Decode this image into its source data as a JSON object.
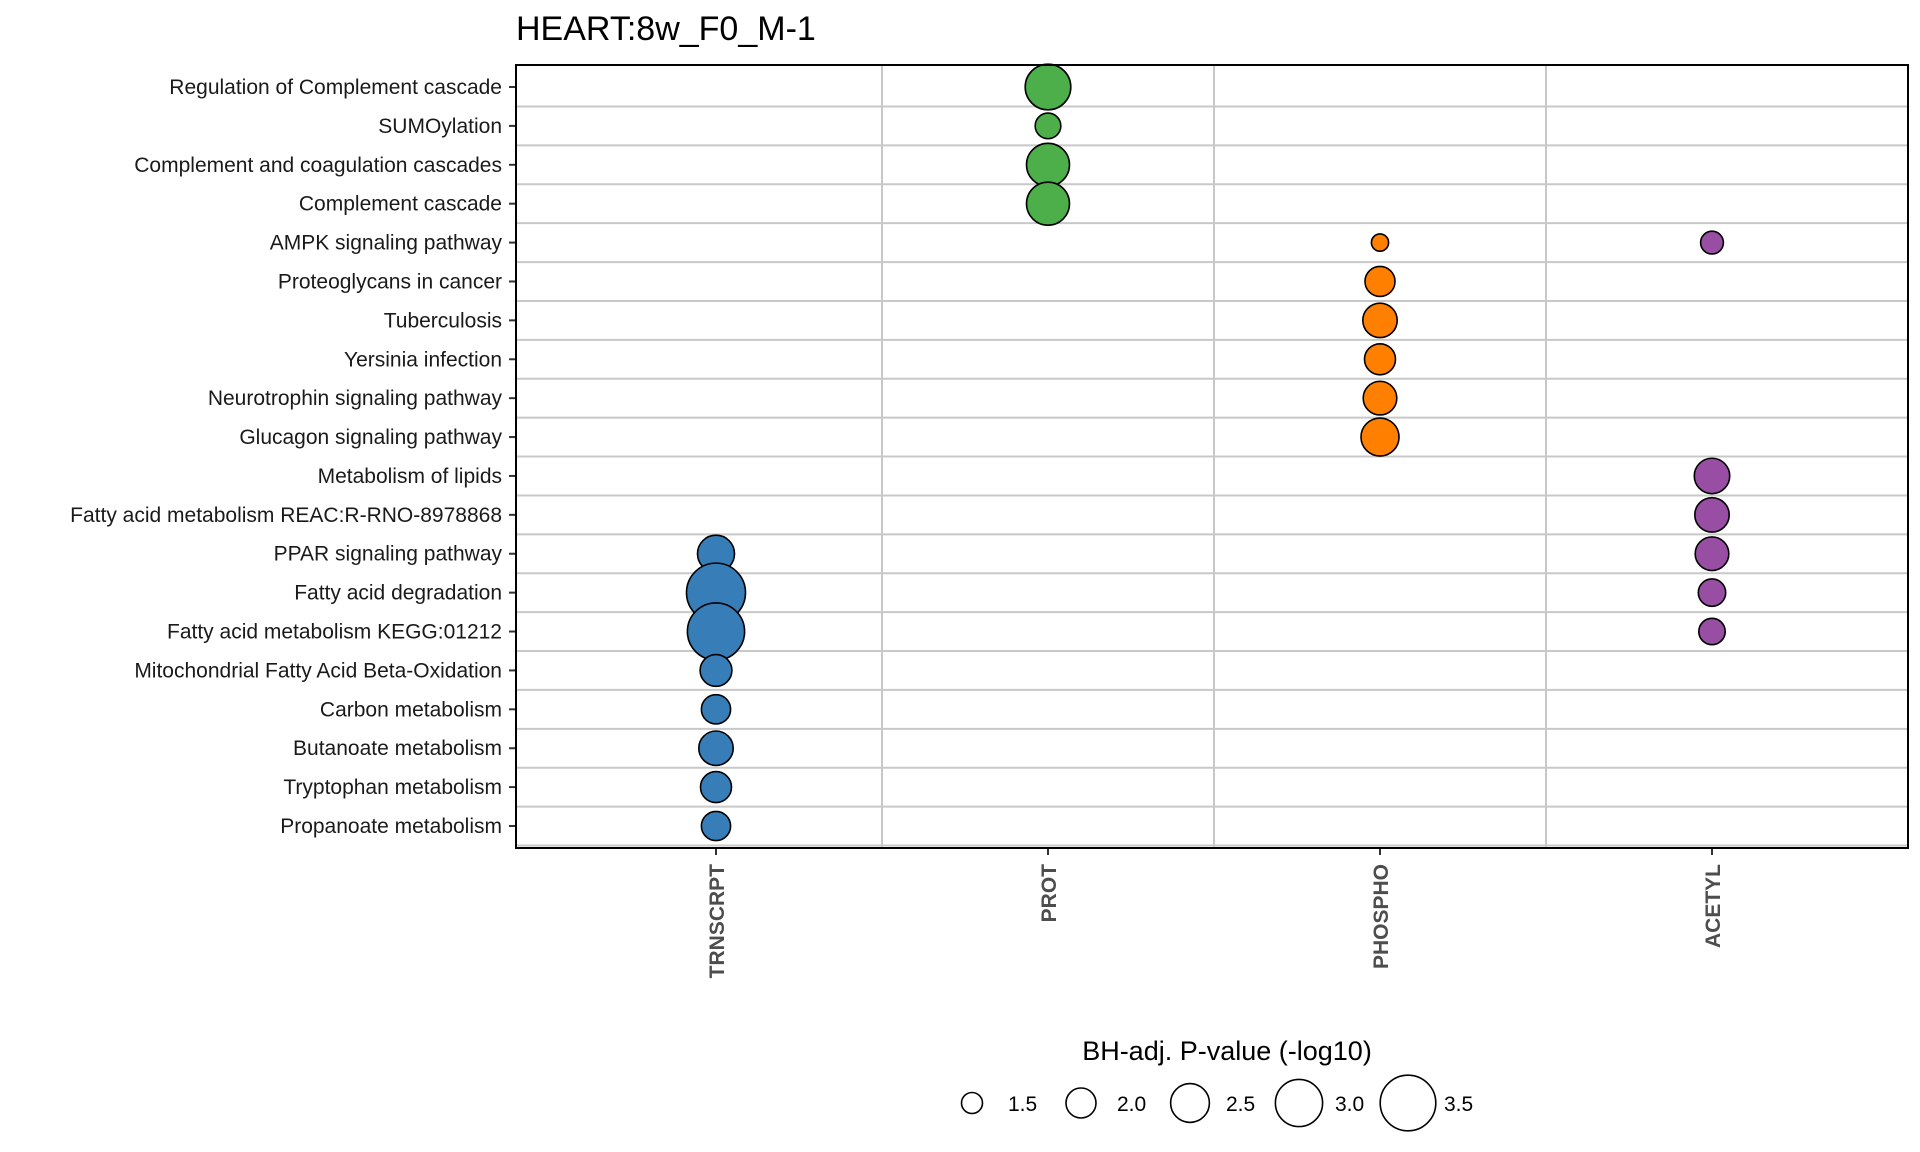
{
  "chart_data": {
    "type": "scatter",
    "title": "HEART:8w_F0_M-1",
    "categories_x": [
      "TRNSCRPT",
      "PROT",
      "PHOSPHO",
      "ACETYL"
    ],
    "categories_y": [
      "Regulation of Complement cascade",
      "SUMOylation",
      "Complement and coagulation cascades",
      "Complement cascade",
      "AMPK signaling pathway",
      "Proteoglycans in cancer",
      "Tuberculosis",
      "Yersinia infection",
      "Neurotrophin signaling pathway",
      "Glucagon signaling pathway",
      "Metabolism of lipids",
      "Fatty acid metabolism REAC:R-RNO-8978868",
      "PPAR signaling pathway",
      "Fatty acid degradation",
      "Fatty acid metabolism KEGG:01212",
      "Mitochondrial Fatty Acid Beta-Oxidation",
      "Carbon metabolism",
      "Butanoate metabolism",
      "Tryptophan metabolism",
      "Propanoate metabolism"
    ],
    "colors": {
      "TRNSCRPT": "#377eb8",
      "PROT": "#4daf4a",
      "PHOSPHO": "#ff7f00",
      "ACETYL": "#984ea3"
    },
    "points": [
      {
        "x": "PROT",
        "y": "Regulation of Complement cascade",
        "value": 2.9
      },
      {
        "x": "PROT",
        "y": "SUMOylation",
        "value": 1.75
      },
      {
        "x": "PROT",
        "y": "Complement and coagulation cascades",
        "value": 2.75
      },
      {
        "x": "PROT",
        "y": "Complement cascade",
        "value": 2.75
      },
      {
        "x": "PHOSPHO",
        "y": "AMPK signaling pathway",
        "value": 1.3
      },
      {
        "x": "ACETYL",
        "y": "AMPK signaling pathway",
        "value": 1.6
      },
      {
        "x": "PHOSPHO",
        "y": "Proteoglycans in cancer",
        "value": 2.0
      },
      {
        "x": "PHOSPHO",
        "y": "Tuberculosis",
        "value": 2.25
      },
      {
        "x": "PHOSPHO",
        "y": "Yersinia infection",
        "value": 2.05
      },
      {
        "x": "PHOSPHO",
        "y": "Neurotrophin signaling pathway",
        "value": 2.2
      },
      {
        "x": "PHOSPHO",
        "y": "Glucagon signaling pathway",
        "value": 2.45
      },
      {
        "x": "ACETYL",
        "y": "Metabolism of lipids",
        "value": 2.3
      },
      {
        "x": "ACETYL",
        "y": "Fatty acid metabolism REAC:R-RNO-8978868",
        "value": 2.25
      },
      {
        "x": "ACETYL",
        "y": "PPAR signaling pathway",
        "value": 2.2
      },
      {
        "x": "ACETYL",
        "y": "Fatty acid degradation",
        "value": 1.85
      },
      {
        "x": "ACETYL",
        "y": "Fatty acid metabolism KEGG:01212",
        "value": 1.8
      },
      {
        "x": "TRNSCRPT",
        "y": "PPAR signaling pathway",
        "value": 2.4
      },
      {
        "x": "TRNSCRPT",
        "y": "Fatty acid degradation",
        "value": 3.7
      },
      {
        "x": "TRNSCRPT",
        "y": "Fatty acid metabolism KEGG:01212",
        "value": 3.6
      },
      {
        "x": "TRNSCRPT",
        "y": "Mitochondrial Fatty Acid Beta-Oxidation",
        "value": 2.1
      },
      {
        "x": "TRNSCRPT",
        "y": "Carbon metabolism",
        "value": 1.95
      },
      {
        "x": "TRNSCRPT",
        "y": "Butanoate metabolism",
        "value": 2.25
      },
      {
        "x": "TRNSCRPT",
        "y": "Tryptophan metabolism",
        "value": 2.05
      },
      {
        "x": "TRNSCRPT",
        "y": "Propanoate metabolism",
        "value": 1.95
      }
    ],
    "legend": {
      "title": "BH-adj. P-value (-log10)",
      "entries": [
        "1.5",
        "2.0",
        "2.5",
        "3.0",
        "3.5"
      ],
      "values": [
        1.5,
        2.0,
        2.5,
        3.0,
        3.5
      ],
      "placement": "bottom"
    },
    "grid": true
  }
}
